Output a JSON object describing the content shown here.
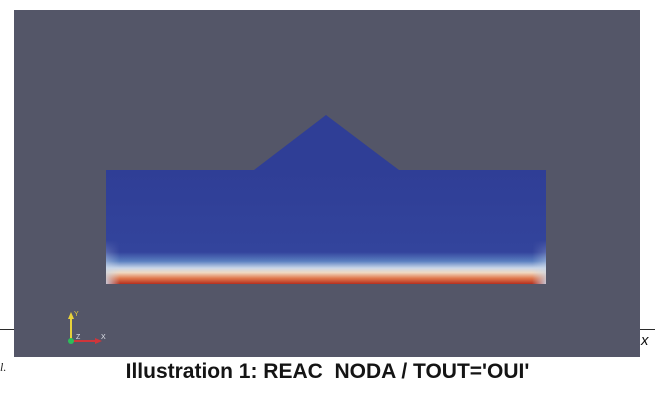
{
  "caption": "Illustration 1: REAC  NODA / TOUT='OUI'",
  "side_fragment_left": "l.",
  "side_fragment_right": "x",
  "viewport": {
    "background": "#545668",
    "mesh_color": "#2f3e96",
    "gradient": [
      "#2f3e96",
      "#5a7fc0",
      "#c9d6e8",
      "#f0d9c2",
      "#e0794e",
      "#b5301f"
    ]
  },
  "axes_triad": {
    "y_label": "Y",
    "z_label": "Z",
    "x_label": "X",
    "y_color": "#e8d23a",
    "z_color": "#2dbd5a",
    "x_color": "#d0353a"
  }
}
